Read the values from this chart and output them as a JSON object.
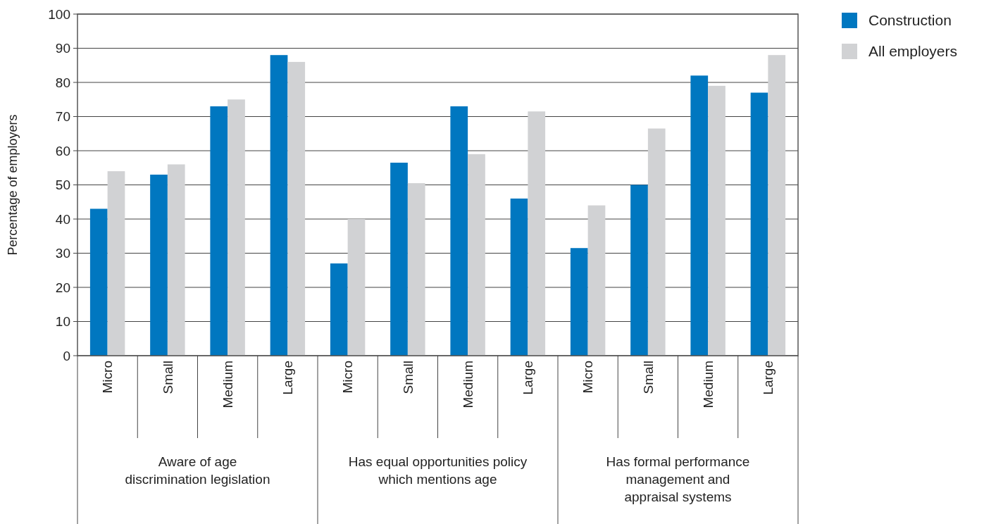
{
  "chart_data": {
    "type": "bar",
    "ylabel": "Percentage of employers",
    "categories": [
      "Micro",
      "Small",
      "Medium",
      "Large",
      "Micro",
      "Small",
      "Medium",
      "Large",
      "Micro",
      "Small",
      "Medium",
      "Large"
    ],
    "series": [
      {
        "name": "Construction",
        "color": "#0077c0",
        "values": [
          43,
          53,
          73,
          88,
          27,
          56.5,
          73,
          46,
          31.5,
          50,
          82,
          77
        ]
      },
      {
        "name": "All employers",
        "color": "#d1d2d4",
        "values": [
          54,
          56,
          75,
          86,
          40,
          50.5,
          59,
          71.5,
          44,
          66.5,
          79,
          88
        ]
      }
    ],
    "annotations": [
      "Aware of age\ndiscrimination legislation",
      "Has equal opportunities policy\nwhich mentions age",
      "Has formal performance\nmanagement and\nappraisal systems"
    ],
    "ylim": [
      0,
      100
    ],
    "yticks": [
      0,
      10,
      20,
      30,
      40,
      50,
      60,
      70,
      80,
      90,
      100
    ],
    "grid": "y",
    "legend": "top right"
  }
}
